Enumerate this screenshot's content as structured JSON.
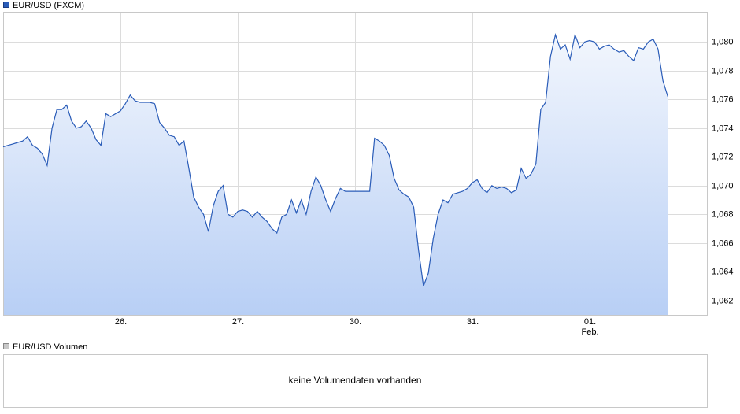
{
  "chart_data": [
    {
      "type": "area",
      "x": [
        0,
        1,
        2,
        3,
        4,
        5,
        6,
        7,
        8,
        9,
        10,
        11,
        12,
        13,
        14,
        15,
        16,
        17,
        18,
        19,
        20,
        21,
        22,
        23,
        24,
        25,
        26,
        27,
        28,
        29,
        30,
        31,
        32,
        33,
        34,
        35,
        36,
        37,
        38,
        39,
        40,
        41,
        42,
        43,
        44,
        45,
        46,
        47,
        48,
        49,
        50,
        51,
        52,
        53,
        54,
        55,
        56,
        57,
        58,
        59,
        60,
        61,
        62,
        63,
        64,
        65,
        66,
        67,
        68,
        69,
        70,
        71,
        72,
        73,
        74,
        75,
        76,
        77,
        78,
        79,
        80,
        81,
        82,
        83,
        84,
        85,
        86,
        87,
        88,
        89,
        90,
        91,
        92,
        93,
        94,
        95,
        96,
        97,
        98,
        99,
        100,
        101,
        102,
        103,
        104,
        105,
        106,
        107,
        108,
        109,
        110,
        111,
        112,
        113,
        114,
        115,
        116,
        117,
        118,
        119,
        120,
        121,
        122,
        123,
        124,
        125,
        126,
        127,
        128,
        129,
        130,
        131,
        132,
        133,
        134,
        135,
        136
      ],
      "series": [
        {
          "name": "EUR/USD (FXCM)",
          "color": "#2a5cb8",
          "values": [
            1.0727,
            1.0728,
            1.0729,
            1.073,
            1.0731,
            1.0734,
            1.0728,
            1.0726,
            1.0722,
            1.0714,
            1.074,
            1.0753,
            1.0753,
            1.0756,
            1.0745,
            1.074,
            1.0741,
            1.0745,
            1.074,
            1.0732,
            1.0728,
            1.075,
            1.0748,
            1.075,
            1.0752,
            1.0757,
            1.0763,
            1.0759,
            1.0758,
            1.0758,
            1.0758,
            1.0757,
            1.0744,
            1.074,
            1.0735,
            1.0734,
            1.0728,
            1.0731,
            1.0712,
            1.0692,
            1.0685,
            1.068,
            1.0668,
            1.0686,
            1.0696,
            1.07,
            1.068,
            1.0678,
            1.0682,
            1.0683,
            1.0682,
            1.0678,
            1.0682,
            1.0678,
            1.0675,
            1.067,
            1.0667,
            1.0678,
            1.068,
            1.069,
            1.0681,
            1.069,
            1.068,
            1.0696,
            1.0706,
            1.07,
            1.069,
            1.0682,
            1.0691,
            1.0698,
            1.0696,
            1.0696,
            1.0696,
            1.0696,
            1.0696,
            1.0696,
            1.0733,
            1.0731,
            1.0728,
            1.0721,
            1.0705,
            1.0697,
            1.0694,
            1.0692,
            1.0685,
            1.0655,
            1.063,
            1.0639,
            1.0663,
            1.068,
            1.069,
            1.0688,
            1.0694,
            1.0695,
            1.0696,
            1.0698,
            1.0702,
            1.0704,
            1.0698,
            1.0695,
            1.07,
            1.0698,
            1.0699,
            1.0698,
            1.0695,
            1.0697,
            1.0712,
            1.0705,
            1.0708,
            1.0715,
            1.0753,
            1.0758,
            1.079,
            1.0805,
            1.0795,
            1.0798,
            1.0788,
            1.0805,
            1.0796,
            1.08,
            1.0801,
            1.08,
            1.0795,
            1.0797,
            1.0798,
            1.0795,
            1.0793,
            1.0794,
            1.079,
            1.0787,
            1.0796,
            1.0795,
            1.08,
            1.0802,
            1.0795,
            1.0773,
            1.0762
          ]
        }
      ],
      "xlim": [
        0,
        144
      ],
      "xticks": [
        {
          "value": 24,
          "label": "26."
        },
        {
          "value": 48,
          "label": "27."
        },
        {
          "value": 72,
          "label": "30."
        },
        {
          "value": 96,
          "label": "31."
        },
        {
          "value": 120,
          "label": "01."
        }
      ],
      "x_sublabel": "Feb.",
      "ylim": [
        1.061,
        1.0821
      ],
      "yticks": [
        {
          "value": 1.062,
          "label": "1,062"
        },
        {
          "value": 1.064,
          "label": "1,064"
        },
        {
          "value": 1.066,
          "label": "1,066"
        },
        {
          "value": 1.068,
          "label": "1,068"
        },
        {
          "value": 1.07,
          "label": "1,070"
        },
        {
          "value": 1.072,
          "label": "1,072"
        },
        {
          "value": 1.074,
          "label": "1,074"
        },
        {
          "value": 1.076,
          "label": "1,076"
        },
        {
          "value": 1.078,
          "label": "1,078"
        },
        {
          "value": 1.08,
          "label": "1,080"
        }
      ],
      "grid": true
    },
    {
      "type": "bar",
      "series": [
        {
          "name": "EUR/USD Volumen",
          "color": "#c8c8c8",
          "values": []
        }
      ],
      "annotation": "keine Volumendaten vorhanden"
    }
  ]
}
